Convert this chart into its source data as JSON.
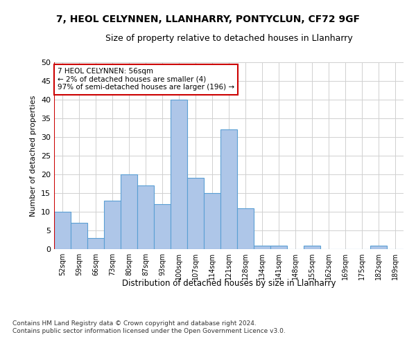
{
  "title": "7, HEOL CELYNNEN, LLANHARRY, PONTYCLUN, CF72 9GF",
  "subtitle": "Size of property relative to detached houses in Llanharry",
  "xlabel": "Distribution of detached houses by size in Llanharry",
  "ylabel": "Number of detached properties",
  "categories": [
    "52sqm",
    "59sqm",
    "66sqm",
    "73sqm",
    "80sqm",
    "87sqm",
    "93sqm",
    "100sqm",
    "107sqm",
    "114sqm",
    "121sqm",
    "128sqm",
    "134sqm",
    "141sqm",
    "148sqm",
    "155sqm",
    "162sqm",
    "169sqm",
    "175sqm",
    "182sqm",
    "189sqm"
  ],
  "values": [
    10,
    7,
    3,
    13,
    20,
    17,
    12,
    40,
    19,
    15,
    32,
    11,
    1,
    1,
    0,
    1,
    0,
    0,
    0,
    1,
    0
  ],
  "bar_color": "#aec6e8",
  "bar_edge_color": "#5a9fd4",
  "annotation_box_text": "7 HEOL CELYNNEN: 56sqm\n← 2% of detached houses are smaller (4)\n97% of semi-detached houses are larger (196) →",
  "annotation_box_color": "#ffffff",
  "annotation_box_edge_color": "#cc0000",
  "vline_color": "#cc0000",
  "ylim": [
    0,
    50
  ],
  "yticks": [
    0,
    5,
    10,
    15,
    20,
    25,
    30,
    35,
    40,
    45,
    50
  ],
  "footer_line1": "Contains HM Land Registry data © Crown copyright and database right 2024.",
  "footer_line2": "Contains public sector information licensed under the Open Government Licence v3.0.",
  "bg_color": "#ffffff",
  "grid_color": "#d0d0d0",
  "title_fontsize": 10,
  "subtitle_fontsize": 9,
  "ylabel_fontsize": 8,
  "xlabel_fontsize": 8.5,
  "tick_fontsize": 7,
  "footer_fontsize": 6.5,
  "annot_fontsize": 7.5
}
